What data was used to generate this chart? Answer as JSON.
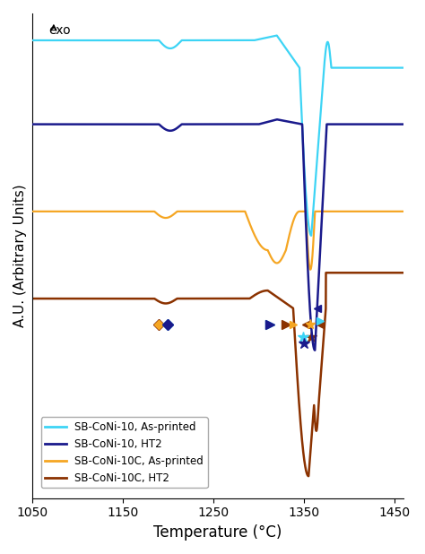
{
  "xlabel": "Temperature (°C)",
  "ylabel": "A.U. (Arbitrary Units)",
  "exo_label": "exo",
  "xlim": [
    1050,
    1460
  ],
  "xticks": [
    1050,
    1150,
    1250,
    1350,
    1450
  ],
  "color_cyan": "#3DD4F5",
  "color_dark_blue": "#1A1A8C",
  "color_orange": "#F5A623",
  "color_dark_orange": "#8B3200",
  "legend_labels": [
    "SB-CoNi-10, As-printed",
    "SB-CoNi-10, HT2",
    "SB-CoNi-10C, As-printed",
    "SB-CoNi-10C, HT2"
  ]
}
